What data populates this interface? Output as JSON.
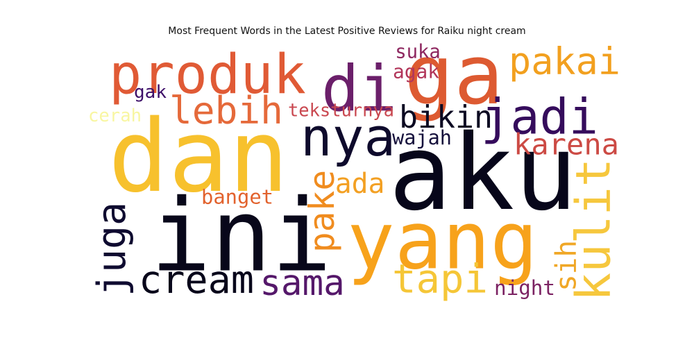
{
  "chart_data": {
    "type": "wordcloud",
    "title": "Most Frequent Words in the Latest Positive Reviews for Raiku night cream",
    "words": [
      {
        "text": "aku",
        "weight": 100,
        "color": "#07061a"
      },
      {
        "text": "dan",
        "weight": 98,
        "color": "#f7c12d"
      },
      {
        "text": "ini",
        "weight": 96,
        "color": "#08071a"
      },
      {
        "text": "yang",
        "weight": 80,
        "color": "#f7a21b"
      },
      {
        "text": "di",
        "weight": 72,
        "color": "#6b1f6a"
      },
      {
        "text": "ga",
        "weight": 70,
        "color": "#dd5a31"
      },
      {
        "text": "produk",
        "weight": 68,
        "color": "#e05a35"
      },
      {
        "text": "nya",
        "weight": 58,
        "color": "#0e0a2c"
      },
      {
        "text": "jadi",
        "weight": 55,
        "color": "#350c5c"
      },
      {
        "text": "kulit",
        "weight": 52,
        "color": "#f6c73d"
      },
      {
        "text": "pakai",
        "weight": 46,
        "color": "#f2a01f"
      },
      {
        "text": "cream",
        "weight": 45,
        "color": "#07051a"
      },
      {
        "text": "pake",
        "weight": 44,
        "color": "#f08c1f"
      },
      {
        "text": "tapi",
        "weight": 43,
        "color": "#f5c637"
      },
      {
        "text": "juga",
        "weight": 42,
        "color": "#0f0b30"
      },
      {
        "text": "lebih",
        "weight": 40,
        "color": "#e5693a"
      },
      {
        "text": "sama",
        "weight": 39,
        "color": "#55186a"
      },
      {
        "text": "bikin",
        "weight": 34,
        "color": "#0c0a22"
      },
      {
        "text": "sih",
        "weight": 30,
        "color": "#f0a726"
      },
      {
        "text": "karena",
        "weight": 29,
        "color": "#cc4a44"
      },
      {
        "text": "ada",
        "weight": 29,
        "color": "#f3a023"
      },
      {
        "text": "banget",
        "weight": 23,
        "color": "#e2622d"
      },
      {
        "text": "night",
        "weight": 23,
        "color": "#7c2363"
      },
      {
        "text": "teksturnya",
        "weight": 21,
        "color": "#c94850"
      },
      {
        "text": "wajah",
        "weight": 21,
        "color": "#15103c"
      },
      {
        "text": "suka",
        "weight": 20,
        "color": "#8e2860"
      },
      {
        "text": "agak",
        "weight": 20,
        "color": "#b2365a"
      },
      {
        "text": "gak",
        "weight": 19,
        "color": "#3d0f68"
      },
      {
        "text": "cerah",
        "weight": 17,
        "color": "#f8f6a2"
      }
    ]
  }
}
